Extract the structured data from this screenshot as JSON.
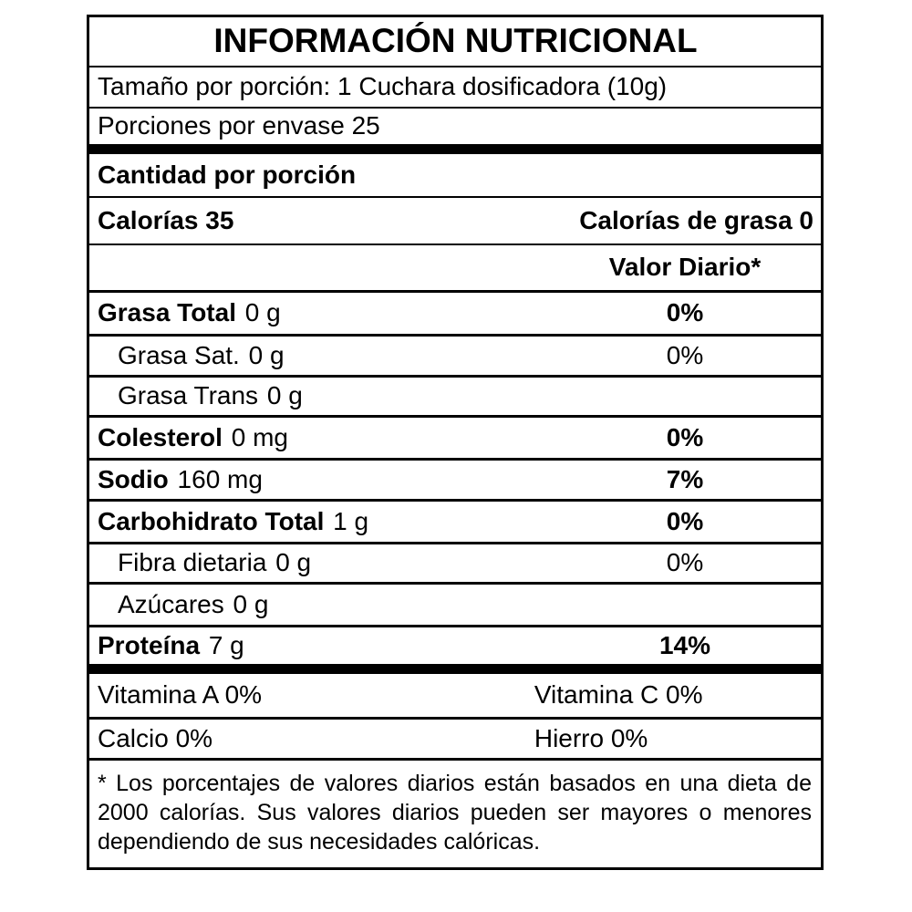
{
  "label": {
    "title": "INFORMACIÓN NUTRICIONAL",
    "serving_size": "Tamaño por porción: 1 Cuchara dosificadora (10g)",
    "servings_per_container": "Porciones por envase 25",
    "amount_per_serving": "Cantidad por porción",
    "calories": "Calorías 35",
    "calories_from_fat": "Calorías de grasa 0",
    "daily_value_header": "Valor Diario*",
    "nutrients": [
      {
        "name": "Grasa Total",
        "amount": "0 g",
        "dv": "0%"
      },
      {
        "name": "Grasa Sat.",
        "amount": "0 g",
        "dv": "0%"
      },
      {
        "name": "Grasa Trans",
        "amount": "0 g",
        "dv": ""
      },
      {
        "name": "Colesterol",
        "amount": "0 mg",
        "dv": "0%"
      },
      {
        "name": "Sodio",
        "amount": "160 mg",
        "dv": "7%"
      },
      {
        "name": "Carbohidrato Total",
        "amount": "1 g",
        "dv": "0%"
      },
      {
        "name": "Fibra dietaria",
        "amount": "0 g",
        "dv": "0%"
      },
      {
        "name": "Azúcares",
        "amount": "0 g",
        "dv": ""
      },
      {
        "name": "Proteína",
        "amount": "7 g",
        "dv": "14%"
      }
    ],
    "micronutrients": {
      "row1_left": "Vitamina A 0%",
      "row1_right": "Vitamina C 0%",
      "row2_left": "Calcio 0%",
      "row2_right": "Hierro 0%"
    },
    "footnote": "* Los porcentajes de valores diarios están basados en una dieta de 2000 calorías. Sus valores diarios pueden ser mayores o menores dependiendo de sus necesidades calóricas.",
    "colors": {
      "border": "#000000",
      "background": "#ffffff",
      "text": "#000000"
    }
  }
}
